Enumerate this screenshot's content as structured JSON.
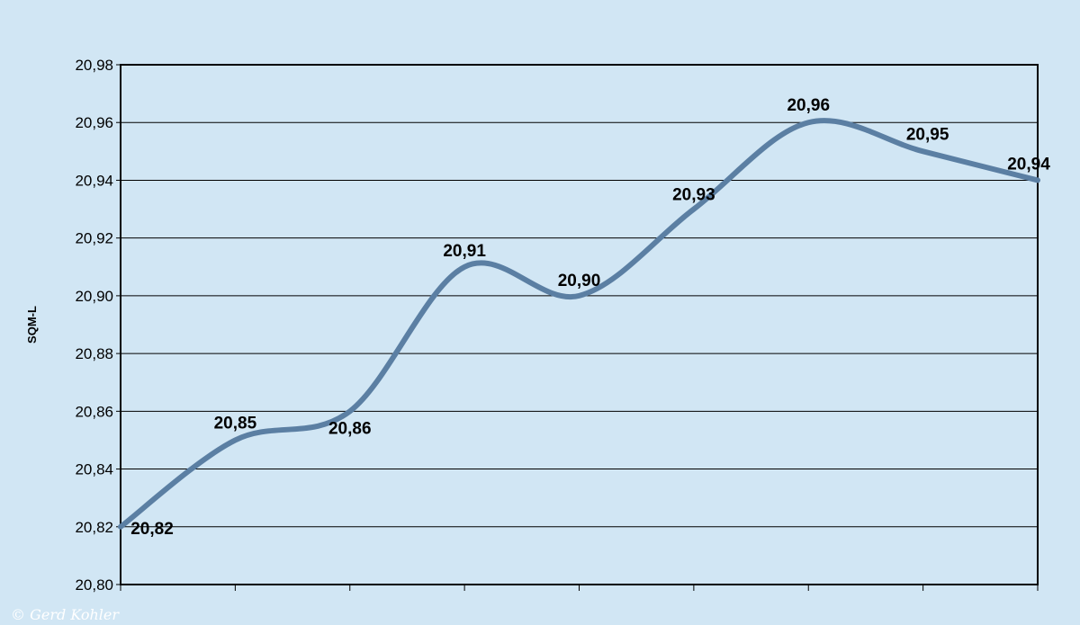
{
  "chart_data": {
    "type": "line",
    "title": "",
    "xlabel": "",
    "ylabel": "SQM-L",
    "x": [
      1,
      2,
      3,
      4,
      5,
      6,
      7,
      8,
      9
    ],
    "ylim": [
      20.8,
      20.98
    ],
    "y_ticks": [
      "20,80",
      "20,82",
      "20,84",
      "20,86",
      "20,88",
      "20,90",
      "20,92",
      "20,94",
      "20,96",
      "20,98"
    ],
    "series": [
      {
        "name": "",
        "color": "#5b7fa3",
        "values": [
          20.82,
          20.85,
          20.86,
          20.91,
          20.9,
          20.93,
          20.96,
          20.95,
          20.94
        ],
        "labels": [
          "20,82",
          "20,85",
          "20,86",
          "20,91",
          "20,90",
          "20,93",
          "20,96",
          "20,95",
          "20,94"
        ]
      }
    ],
    "grid": true,
    "legend": "none",
    "background_color": "#d1e6f4",
    "plot_background_color": "#d1e6f4"
  },
  "copyright": "© Gerd Kohler"
}
